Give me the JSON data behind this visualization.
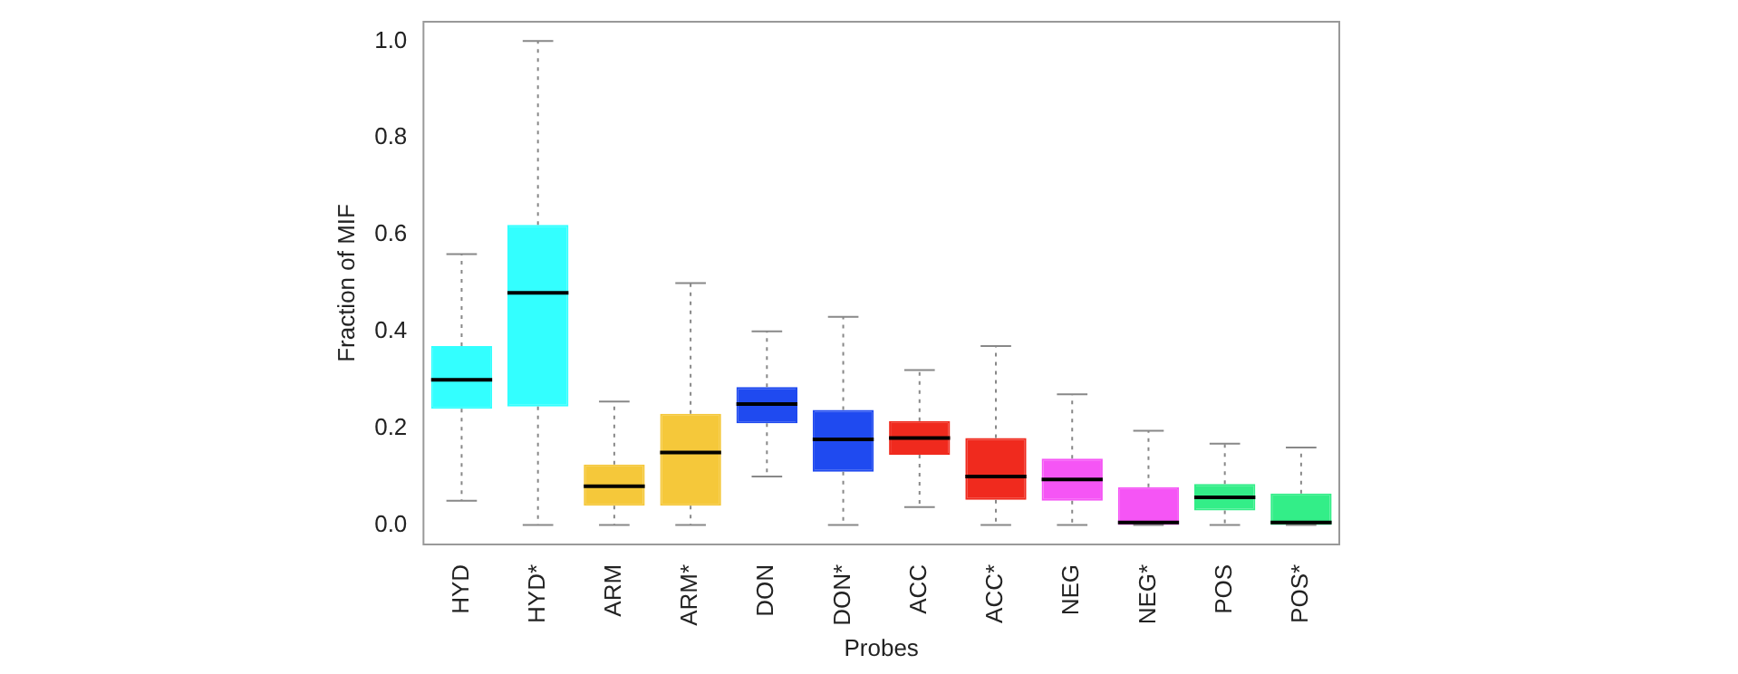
{
  "chart_data": {
    "type": "box",
    "xlabel": "Probes",
    "ylabel": "Fraction of MIF",
    "categories": [
      "HYD",
      "HYD*",
      "ARM",
      "ARM*",
      "DON",
      "DON*",
      "ACC",
      "ACC*",
      "NEG",
      "NEG*",
      "POS",
      "POS*"
    ],
    "colors": [
      "#33ffff",
      "#33ffff",
      "#f5c83a",
      "#f5c83a",
      "#1f4af0",
      "#1f4af0",
      "#f02a1e",
      "#f02a1e",
      "#f555f5",
      "#f555f5",
      "#33ee88",
      "#33ee88"
    ],
    "boxes": [
      {
        "low": 0.05,
        "q1": 0.24,
        "median": 0.3,
        "q3": 0.37,
        "high": 0.56
      },
      {
        "low": 0,
        "q1": 0.245,
        "median": 0.48,
        "q3": 0.62,
        "high": 1.0
      },
      {
        "low": 0,
        "q1": 0.04,
        "median": 0.08,
        "q3": 0.125,
        "high": 0.255
      },
      {
        "low": 0,
        "q1": 0.04,
        "median": 0.15,
        "q3": 0.23,
        "high": 0.5
      },
      {
        "low": 0.1,
        "q1": 0.21,
        "median": 0.25,
        "q3": 0.285,
        "high": 0.4
      },
      {
        "low": 0,
        "q1": 0.11,
        "median": 0.177,
        "q3": 0.238,
        "high": 0.43
      },
      {
        "low": 0.037,
        "q1": 0.145,
        "median": 0.18,
        "q3": 0.215,
        "high": 0.32
      },
      {
        "low": 0,
        "q1": 0.052,
        "median": 0.1,
        "q3": 0.18,
        "high": 0.37
      },
      {
        "low": 0,
        "q1": 0.05,
        "median": 0.094,
        "q3": 0.137,
        "high": 0.27
      },
      {
        "low": 0,
        "q1": 0,
        "median": 0.005,
        "q3": 0.078,
        "high": 0.195
      },
      {
        "low": 0,
        "q1": 0.03,
        "median": 0.057,
        "q3": 0.085,
        "high": 0.168
      },
      {
        "low": 0,
        "q1": 0,
        "median": 0.005,
        "q3": 0.065,
        "high": 0.16
      }
    ],
    "ylim": [
      -0.04,
      1.04
    ],
    "yticks": [
      {
        "value": 0,
        "label": "0.0"
      },
      {
        "value": 0.2,
        "label": "0.2"
      },
      {
        "value": 0.4,
        "label": "0.4"
      },
      {
        "value": 0.6,
        "label": "0.6"
      },
      {
        "value": 0.8,
        "label": "0.8"
      },
      {
        "value": 1,
        "label": "1.0"
      }
    ],
    "grid": false
  }
}
